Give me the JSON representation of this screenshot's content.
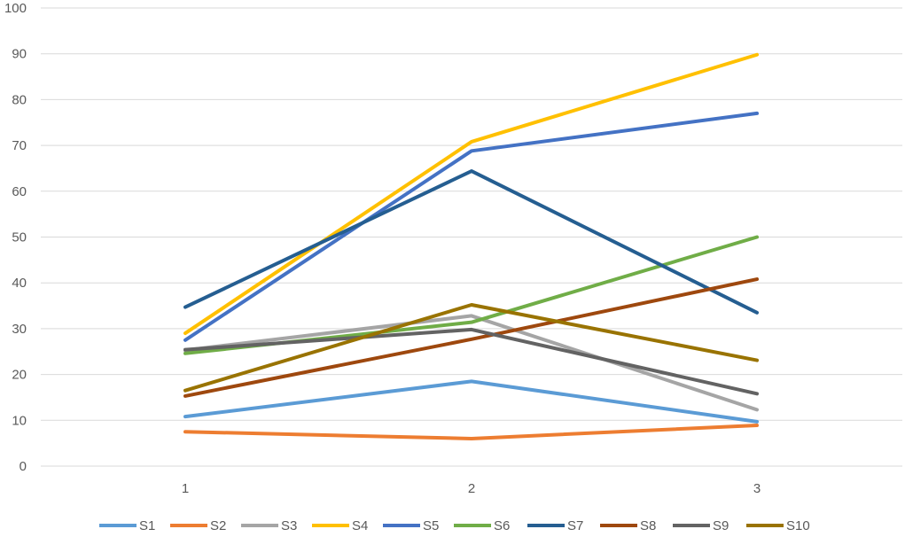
{
  "chart_data": {
    "type": "line",
    "title": "",
    "xlabel": "",
    "ylabel": "",
    "categories": [
      "1",
      "2",
      "3"
    ],
    "ylim": [
      0,
      100
    ],
    "yticks": [
      0,
      10,
      20,
      30,
      40,
      50,
      60,
      70,
      80,
      90,
      100
    ],
    "grid": "horizontal",
    "legend_position": "bottom",
    "series": [
      {
        "name": "S1",
        "color": "#5b9bd5",
        "values": [
          10.8,
          18.5,
          9.7
        ]
      },
      {
        "name": "S2",
        "color": "#ed7d31",
        "values": [
          7.5,
          6.0,
          8.9
        ]
      },
      {
        "name": "S3",
        "color": "#a5a5a5",
        "values": [
          25.3,
          32.8,
          12.3
        ]
      },
      {
        "name": "S4",
        "color": "#ffc000",
        "values": [
          29.0,
          70.8,
          89.8
        ]
      },
      {
        "name": "S5",
        "color": "#4472c4",
        "values": [
          27.5,
          68.8,
          77.0
        ]
      },
      {
        "name": "S6",
        "color": "#70ad47",
        "values": [
          24.6,
          31.4,
          50.0
        ]
      },
      {
        "name": "S7",
        "color": "#255e91",
        "values": [
          34.7,
          64.4,
          33.5
        ]
      },
      {
        "name": "S8",
        "color": "#9e480e",
        "values": [
          15.3,
          27.7,
          40.8
        ]
      },
      {
        "name": "S9",
        "color": "#636363",
        "values": [
          25.4,
          29.8,
          15.8
        ]
      },
      {
        "name": "S10",
        "color": "#997300",
        "values": [
          16.5,
          35.2,
          23.1
        ]
      }
    ]
  }
}
